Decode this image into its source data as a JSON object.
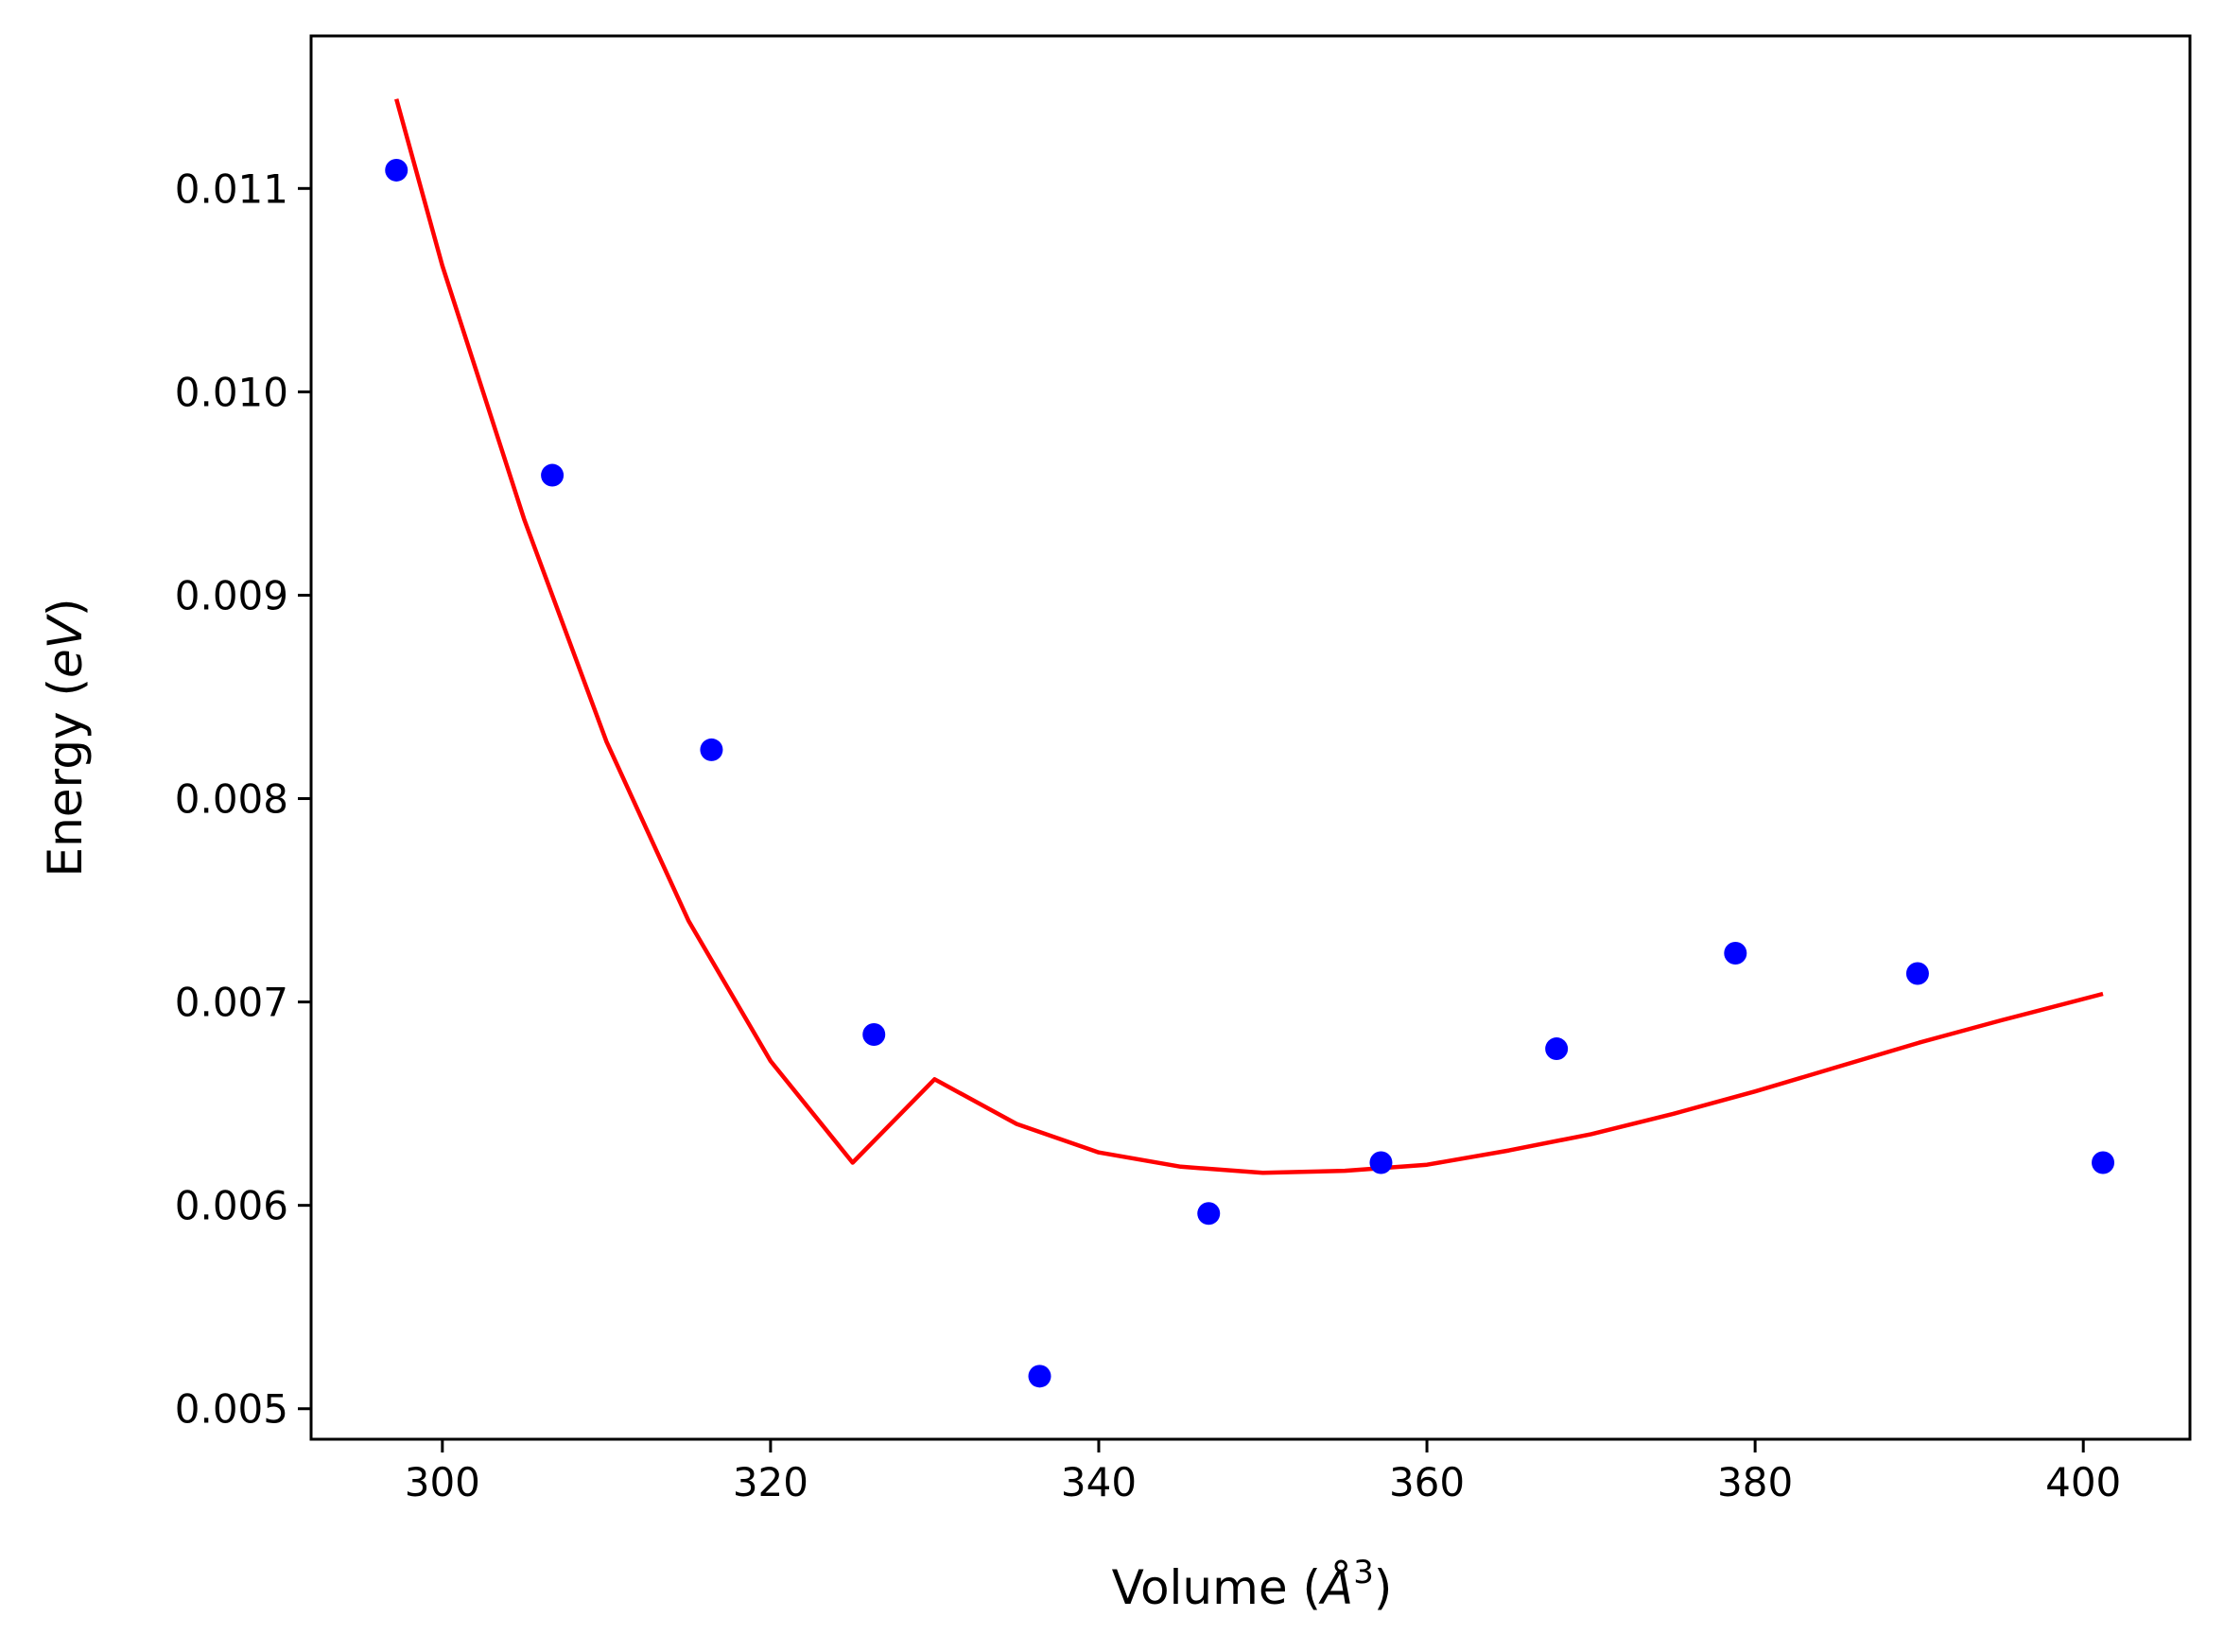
{
  "chart_data": {
    "type": "scatter",
    "xlabel": "Volume (",
    "xlabel_symbol": "Å",
    "xlabel_exponent": "3",
    "xlabel_close": ")",
    "ylabel": "Energy (",
    "ylabel_unit": "eV",
    "ylabel_close": ")",
    "xlim": [
      292,
      406.5
    ],
    "ylim": [
      0.00485,
      0.01175
    ],
    "x_ticks": [
      300,
      320,
      340,
      360,
      380,
      400
    ],
    "x_tick_labels": [
      "300",
      "320",
      "340",
      "360",
      "380",
      "400"
    ],
    "y_ticks": [
      0.005,
      0.006,
      0.007,
      0.008,
      0.009,
      0.01,
      0.011
    ],
    "y_tick_labels": [
      "0.005",
      "0.006",
      "0.007",
      "0.008",
      "0.009",
      "0.010",
      "0.011"
    ],
    "grid": false,
    "series": [
      {
        "kind": "points",
        "color": "#0000ff",
        "x": [
          297.2,
          306.7,
          316.4,
          326.3,
          336.4,
          346.7,
          357.2,
          367.9,
          378.8,
          389.9,
          401.2
        ],
        "y": [
          0.01109,
          0.00959,
          0.00824,
          0.00684,
          0.00516,
          0.00596,
          0.00621,
          0.00677,
          0.00724,
          0.00714,
          0.00621
        ]
      },
      {
        "kind": "fit-curve",
        "color": "#ff0000",
        "x": [
          297.2,
          300,
          305,
          310,
          315,
          320,
          325,
          330,
          335,
          340,
          345,
          350,
          355,
          360,
          365,
          370,
          375,
          380,
          385,
          390,
          395,
          401.2
        ],
        "y": [
          0.01144,
          0.01062,
          0.00937,
          0.00828,
          0.0074,
          0.00671,
          0.00621,
          0.00662,
          0.0064,
          0.00626,
          0.00619,
          0.00616,
          0.00617,
          0.0062,
          0.00627,
          0.00635,
          0.00645,
          0.00656,
          0.00668,
          0.0068,
          0.00691,
          0.00704
        ]
      }
    ]
  }
}
